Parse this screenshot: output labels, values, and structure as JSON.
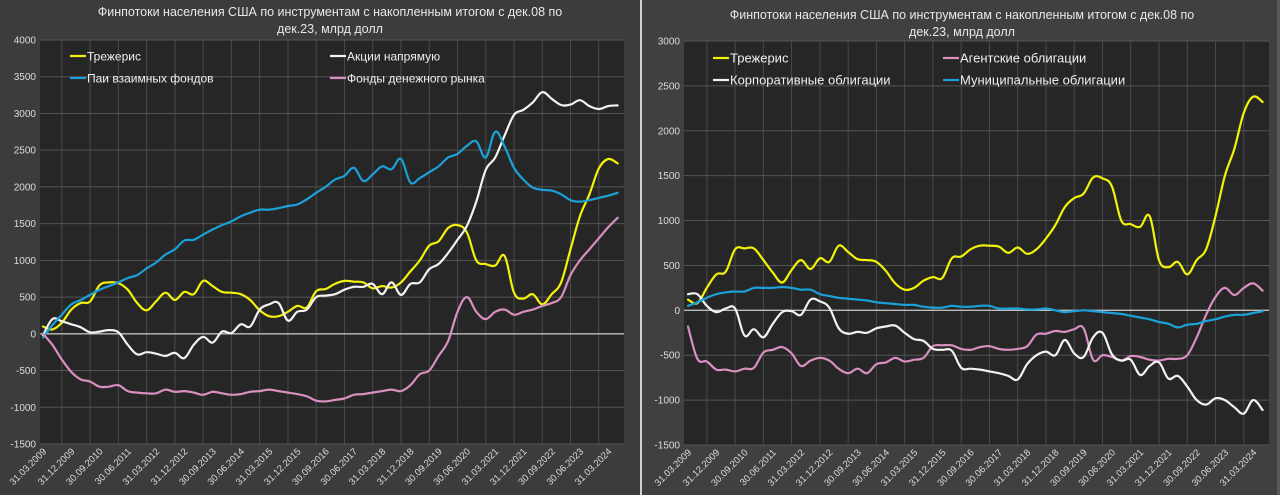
{
  "chart_data": [
    {
      "type": "line",
      "title": "Финпотоки населения США по инструментам с накопленным итогом с дек.08 по дек.23, млрд долл",
      "title_lines": [
        "Финпотоки населения США по инструментам с накопленным итогом с дек.08 по",
        "дек.23, млрд долл"
      ],
      "xlabel": "",
      "ylabel": "",
      "ylim": [
        -1500,
        4000
      ],
      "yticks": [
        4000,
        3500,
        3000,
        2500,
        2000,
        1500,
        1000,
        500,
        0,
        -500,
        -1000,
        -1500
      ],
      "x_ticks": [
        "31.03.2009",
        "31.12.2009",
        "30.09.2010",
        "30.06.2011",
        "31.03.2012",
        "31.12.2012",
        "30.09.2013",
        "30.06.2014",
        "31.03.2015",
        "31.12.2015",
        "30.09.2016",
        "30.06.2017",
        "31.03.2018",
        "31.12.2018",
        "30.09.2019",
        "30.06.2020",
        "31.03.2021",
        "31.12.2021",
        "30.09.2022",
        "30.06.2023",
        "31.03.2024"
      ],
      "x_frequency": "quarterly, first point 31.03.2009",
      "grid": true,
      "legend_position": "top-left, two columns",
      "series": [
        {
          "name": "Трежерис",
          "color": "#f2f20a",
          "values": [
            100,
            60,
            150,
            330,
            420,
            440,
            660,
            700,
            690,
            600,
            420,
            320,
            440,
            560,
            460,
            570,
            540,
            720,
            650,
            570,
            560,
            540,
            460,
            320,
            240,
            240,
            300,
            380,
            360,
            580,
            610,
            680,
            720,
            710,
            700,
            620,
            650,
            630,
            700,
            850,
            1000,
            1200,
            1260,
            1440,
            1480,
            1380,
            1000,
            950,
            930,
            1060,
            560,
            480,
            540,
            400,
            540,
            700,
            1150,
            1600,
            1900,
            2250,
            2380,
            2320
          ]
        },
        {
          "name": "Акции напрямую",
          "color": "#f2f2f2",
          "values": [
            -20,
            200,
            170,
            130,
            90,
            20,
            30,
            50,
            20,
            -150,
            -280,
            -250,
            -270,
            -300,
            -260,
            -330,
            -150,
            -40,
            -120,
            30,
            10,
            130,
            100,
            330,
            400,
            420,
            180,
            300,
            330,
            500,
            520,
            540,
            600,
            640,
            640,
            680,
            540,
            700,
            530,
            680,
            700,
            880,
            950,
            1100,
            1280,
            1470,
            1800,
            2230,
            2400,
            2700,
            2980,
            3050,
            3150,
            3290,
            3200,
            3115,
            3120,
            3180,
            3100,
            3060,
            3100,
            3110
          ]
        },
        {
          "name": "Паи взаимных фондов",
          "color": "#1ba1d9",
          "values": [
            -50,
            120,
            260,
            400,
            460,
            530,
            600,
            650,
            700,
            760,
            800,
            890,
            970,
            1080,
            1150,
            1270,
            1280,
            1350,
            1420,
            1480,
            1530,
            1600,
            1650,
            1690,
            1690,
            1710,
            1740,
            1760,
            1830,
            1920,
            2000,
            2100,
            2150,
            2260,
            2080,
            2170,
            2280,
            2240,
            2380,
            2060,
            2120,
            2200,
            2280,
            2400,
            2450,
            2560,
            2620,
            2400,
            2750,
            2550,
            2260,
            2100,
            1990,
            1960,
            1950,
            1900,
            1820,
            1800,
            1820,
            1850,
            1880,
            1920
          ]
        },
        {
          "name": "Фонды денежного рынка",
          "color": "#d98fbf",
          "values": [
            0,
            -150,
            -350,
            -520,
            -620,
            -650,
            -720,
            -720,
            -700,
            -780,
            -800,
            -810,
            -810,
            -760,
            -790,
            -780,
            -800,
            -830,
            -790,
            -810,
            -830,
            -820,
            -790,
            -780,
            -760,
            -780,
            -800,
            -820,
            -850,
            -910,
            -920,
            -900,
            -880,
            -830,
            -820,
            -800,
            -780,
            -760,
            -780,
            -700,
            -550,
            -500,
            -300,
            -100,
            300,
            500,
            300,
            200,
            300,
            330,
            260,
            300,
            330,
            380,
            420,
            500,
            800,
            1000,
            1150,
            1300,
            1450,
            1580
          ]
        }
      ]
    },
    {
      "type": "line",
      "title": "Финпотоки населения США по инструментам с накопленным итогом с дек.08 по дек.23, млрд долл",
      "title_lines": [
        "Финпотоки населения США по инструментам с накопленным итогом с дек.08 по",
        "дек.23, млрд долл"
      ],
      "xlabel": "",
      "ylabel": "",
      "ylim": [
        -1500,
        3000
      ],
      "yticks": [
        3000,
        2500,
        2000,
        1500,
        1000,
        500,
        0,
        -500,
        -1000,
        -1500
      ],
      "x_ticks": [
        "31.03.2009",
        "31.12.2009",
        "30.09.2010",
        "30.06.2011",
        "31.03.2012",
        "31.12.2012",
        "30.09.2013",
        "30.06.2014",
        "31.03.2015",
        "31.12.2015",
        "30.09.2016",
        "30.06.2017",
        "31.03.2018",
        "31.12.2018",
        "30.09.2019",
        "30.06.2020",
        "31.03.2021",
        "31.12.2021",
        "30.09.2022",
        "30.06.2023",
        "31.03.2024"
      ],
      "x_frequency": "quarterly, first point 31.03.2009",
      "grid": true,
      "legend_position": "top-left, two columns",
      "series": [
        {
          "name": "Трежерис",
          "color": "#f2f20a",
          "values": [
            120,
            80,
            250,
            400,
            430,
            680,
            690,
            690,
            560,
            420,
            310,
            450,
            560,
            460,
            580,
            540,
            720,
            650,
            570,
            560,
            540,
            440,
            300,
            230,
            250,
            330,
            370,
            360,
            580,
            600,
            680,
            720,
            720,
            710,
            640,
            700,
            630,
            680,
            800,
            950,
            1150,
            1250,
            1300,
            1480,
            1470,
            1380,
            1000,
            960,
            930,
            1050,
            560,
            480,
            540,
            400,
            560,
            680,
            1050,
            1500,
            1800,
            2200,
            2380,
            2320
          ]
        },
        {
          "name": "Агентские облигации",
          "color": "#d98fbf",
          "values": [
            -180,
            -540,
            -570,
            -660,
            -660,
            -680,
            -650,
            -640,
            -470,
            -440,
            -410,
            -480,
            -620,
            -560,
            -530,
            -560,
            -650,
            -700,
            -650,
            -700,
            -600,
            -580,
            -530,
            -570,
            -550,
            -530,
            -400,
            -390,
            -390,
            -430,
            -440,
            -410,
            -400,
            -430,
            -440,
            -430,
            -400,
            -270,
            -260,
            -230,
            -240,
            -210,
            -200,
            -550,
            -500,
            -520,
            -560,
            -510,
            -520,
            -550,
            -560,
            -540,
            -540,
            -500,
            -300,
            -50,
            150,
            250,
            170,
            250,
            300,
            220
          ]
        },
        {
          "name": "Корпоративные облигации",
          "color": "#f2f2f2",
          "values": [
            180,
            180,
            50,
            -20,
            20,
            20,
            -280,
            -210,
            -300,
            -150,
            -20,
            -10,
            -50,
            120,
            100,
            30,
            -200,
            -260,
            -240,
            -250,
            -200,
            -180,
            -170,
            -250,
            -320,
            -340,
            -430,
            -440,
            -450,
            -640,
            -650,
            -660,
            -680,
            -700,
            -730,
            -770,
            -600,
            -500,
            -460,
            -500,
            -330,
            -480,
            -520,
            -300,
            -250,
            -490,
            -560,
            -550,
            -720,
            -620,
            -580,
            -760,
            -730,
            -850,
            -1000,
            -1050,
            -980,
            -1000,
            -1080,
            -1150,
            -1000,
            -1110
          ]
        },
        {
          "name": "Муниципальные облигации",
          "color": "#1ba1d9",
          "values": [
            50,
            90,
            140,
            180,
            200,
            210,
            210,
            250,
            250,
            250,
            260,
            250,
            230,
            230,
            180,
            160,
            140,
            130,
            120,
            110,
            90,
            80,
            70,
            60,
            60,
            40,
            30,
            30,
            50,
            40,
            40,
            50,
            50,
            20,
            20,
            20,
            10,
            10,
            20,
            0,
            -20,
            -10,
            0,
            -10,
            -20,
            -30,
            -40,
            -60,
            -80,
            -100,
            -130,
            -150,
            -190,
            -160,
            -150,
            -120,
            -100,
            -70,
            -50,
            -50,
            -30,
            -10
          ]
        }
      ]
    }
  ]
}
